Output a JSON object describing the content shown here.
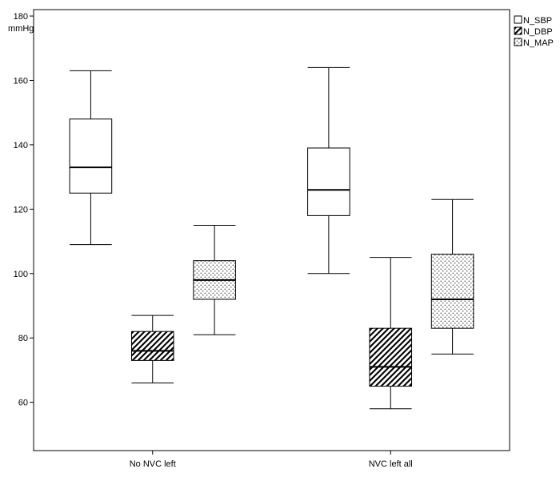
{
  "chart_data": {
    "type": "box",
    "title": "",
    "xlabel": "",
    "ylabel": "mmHg",
    "ylim": [
      45,
      182
    ],
    "y_ticks": [
      "60",
      "80",
      "100",
      "120",
      "140",
      "160",
      "180"
    ],
    "grid": false,
    "legend_position": "top-right",
    "categories": [
      "No NVC left",
      "NVC left all"
    ],
    "series": [
      {
        "name": "N_SBP",
        "pattern": "blank",
        "boxes": [
          {
            "min": 109,
            "q1": 125,
            "median": 133,
            "q3": 148,
            "max": 163
          },
          {
            "min": 100,
            "q1": 118,
            "median": 126,
            "q3": 139,
            "max": 164
          }
        ]
      },
      {
        "name": "N_DBP",
        "pattern": "diagonal-hatch",
        "boxes": [
          {
            "min": 66,
            "q1": 73,
            "median": 76,
            "q3": 82,
            "max": 87
          },
          {
            "min": 58,
            "q1": 65,
            "median": 71,
            "q3": 83,
            "max": 105
          }
        ]
      },
      {
        "name": "N_MAP",
        "pattern": "dots",
        "boxes": [
          {
            "min": 81,
            "q1": 92,
            "median": 98,
            "q3": 104,
            "max": 115
          },
          {
            "min": 75,
            "q1": 83,
            "median": 92,
            "q3": 106,
            "max": 123
          }
        ]
      }
    ]
  }
}
